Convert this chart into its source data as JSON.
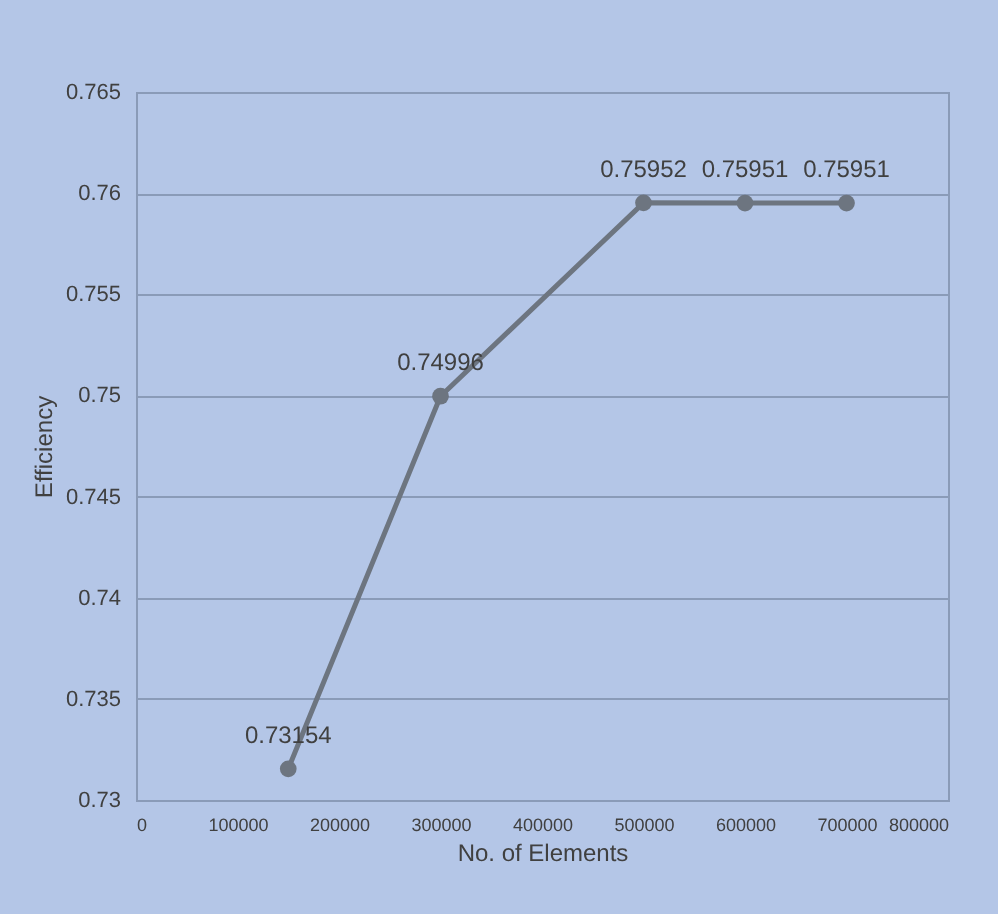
{
  "chart_data": {
    "type": "line",
    "xlabel": "No. of Elements",
    "ylabel": "Efficiency",
    "x": [
      150000,
      300000,
      500000,
      600000,
      700000
    ],
    "series": [
      {
        "color": "#6d7580",
        "values": [
          0.73154,
          0.74996,
          0.75952,
          0.75951,
          0.75951
        ]
      }
    ],
    "xlim": [
      0,
      800000
    ],
    "xticks": [
      0,
      100000,
      200000,
      300000,
      400000,
      500000,
      600000,
      700000,
      800000
    ],
    "ylim": [
      0.73,
      0.765
    ],
    "yticks": [
      0.73,
      0.735,
      0.74,
      0.745,
      0.75,
      0.755,
      0.76,
      0.765
    ],
    "grid": "y",
    "marker": "circle",
    "line_style": "solid",
    "data_labels": true
  }
}
